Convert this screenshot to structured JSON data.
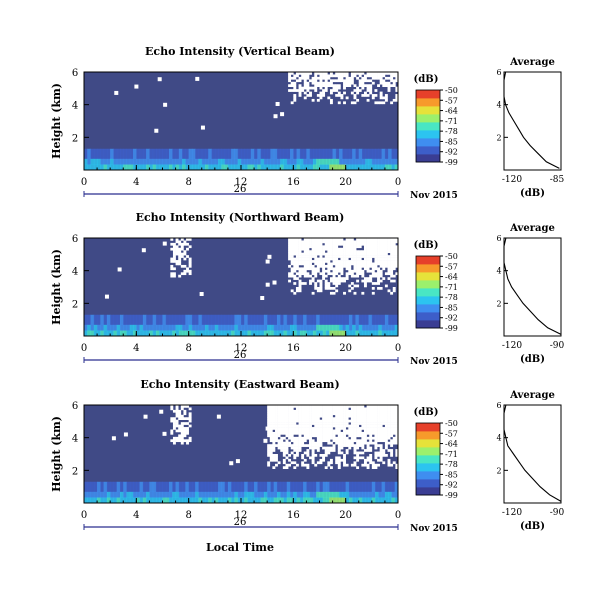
{
  "colors": {
    "background": "#404a86",
    "missing": "#ffffff",
    "colormap": [
      "#3a3d93",
      "#3d5ec9",
      "#3f8ef0",
      "#2cc4f0",
      "#49e6c4",
      "#9cf06c",
      "#e6e23a",
      "#f79a2b",
      "#e6402a"
    ]
  },
  "chart_data": [
    {
      "type": "heatmap",
      "beam": "vertical",
      "title": "Echo Intensity (Vertical Beam)",
      "ylabel": "Height (km)",
      "ylim": [
        0,
        6
      ],
      "yticks": [
        "2",
        "4",
        "6"
      ],
      "xlim": [
        0,
        24
      ],
      "xticks": [
        "0",
        "4",
        "8",
        "12",
        "16",
        "20",
        "0"
      ],
      "date_day": "26",
      "date_month_year": "Nov 2015",
      "xlabel": "",
      "colorbar_unit": "(dB)",
      "colorbar_ticks": [
        "-50",
        "-57",
        "-64",
        "-71",
        "-78",
        "-85",
        "-92",
        "-99"
      ],
      "zlim": [
        -99,
        -50
      ],
      "gap_hours": [
        [
          15.5,
          24
        ]
      ],
      "gap_min_height_km": 4.0,
      "profile": {
        "title": "Average",
        "xlabel": "(dB)",
        "xticks": [
          "-120",
          "-85"
        ],
        "xlim": [
          -120,
          -85
        ],
        "yticks": [
          "2",
          "4",
          "6"
        ],
        "ylim": [
          0,
          6
        ],
        "heights": [
          0.1,
          0.5,
          1.0,
          1.5,
          2.0,
          2.5,
          3.0,
          3.5,
          4.0,
          4.5,
          5.0,
          5.5,
          6.0
        ],
        "values": [
          -86,
          -94,
          -99,
          -104,
          -108,
          -111,
          -114,
          -117,
          -119,
          -120,
          -120,
          -120,
          -119
        ]
      }
    },
    {
      "type": "heatmap",
      "beam": "northward",
      "title": "Echo Intensity (Northward Beam)",
      "ylabel": "Height (km)",
      "ylim": [
        0,
        6
      ],
      "yticks": [
        "2",
        "4",
        "6"
      ],
      "xlim": [
        0,
        24
      ],
      "xticks": [
        "0",
        "4",
        "8",
        "12",
        "16",
        "20",
        "0"
      ],
      "date_day": "26",
      "date_month_year": "Nov 2015",
      "xlabel": "",
      "colorbar_unit": "(dB)",
      "colorbar_ticks": [
        "-50",
        "-57",
        "-64",
        "-71",
        "-78",
        "-85",
        "-92",
        "-99"
      ],
      "zlim": [
        -99,
        -50
      ],
      "gap_hours": [
        [
          6.5,
          8
        ],
        [
          15.5,
          24
        ]
      ],
      "gap_min_height_km": 2.5,
      "profile": {
        "title": "Average",
        "xlabel": "(dB)",
        "xticks": [
          "-120",
          "-90"
        ],
        "xlim": [
          -120,
          -90
        ],
        "yticks": [
          "2",
          "4",
          "6"
        ],
        "ylim": [
          0,
          6
        ],
        "heights": [
          0.1,
          0.5,
          1.0,
          1.5,
          2.0,
          2.5,
          3.0,
          3.5,
          4.0,
          4.5,
          5.0,
          5.5,
          6.0
        ],
        "values": [
          -90,
          -97,
          -102,
          -106,
          -110,
          -113,
          -116,
          -118,
          -119,
          -121,
          -120,
          -121,
          -119
        ]
      }
    },
    {
      "type": "heatmap",
      "beam": "eastward",
      "title": "Echo Intensity (Eastward Beam)",
      "ylabel": "Height (km)",
      "ylim": [
        0,
        6
      ],
      "yticks": [
        "2",
        "4",
        "6"
      ],
      "xlim": [
        0,
        24
      ],
      "xticks": [
        "0",
        "4",
        "8",
        "12",
        "16",
        "20",
        "0"
      ],
      "date_day": "26",
      "date_month_year": "Nov 2015",
      "xlabel": "Local Time",
      "colorbar_unit": "(dB)",
      "colorbar_ticks": [
        "-50",
        "-57",
        "-64",
        "-71",
        "-78",
        "-85",
        "-92",
        "-99"
      ],
      "zlim": [
        -99,
        -50
      ],
      "gap_hours": [
        [
          6.5,
          8
        ],
        [
          14,
          24
        ]
      ],
      "gap_min_height_km": 2.0,
      "profile": {
        "title": "Average",
        "xlabel": "(dB)",
        "xticks": [
          "-120",
          "-90"
        ],
        "xlim": [
          -120,
          -90
        ],
        "yticks": [
          "2",
          "4",
          "6"
        ],
        "ylim": [
          0,
          6
        ],
        "heights": [
          0.1,
          0.5,
          1.0,
          1.5,
          2.0,
          2.5,
          3.0,
          3.5,
          4.0,
          4.5,
          5.0,
          5.5,
          6.0
        ],
        "values": [
          -89,
          -96,
          -101,
          -105,
          -109,
          -112,
          -115,
          -118,
          -119,
          -121,
          -120,
          -121,
          -119
        ]
      }
    }
  ]
}
